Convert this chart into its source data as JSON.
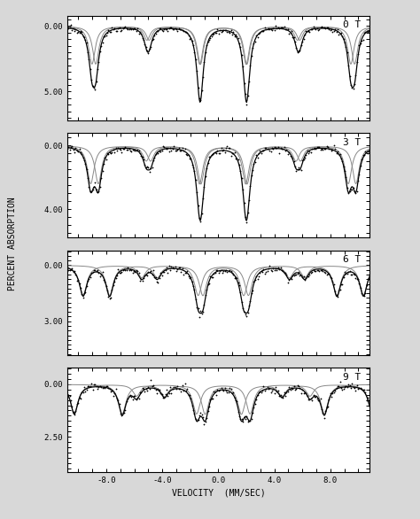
{
  "panels": [
    {
      "label": "0 T",
      "yticks": [
        0.0,
        5.0
      ],
      "ytick_labels": [
        "0.00",
        "5.00"
      ],
      "ylim": [
        7.2,
        -0.8
      ],
      "sextets": [
        {
          "iso": 0.35,
          "bhf": 50.5,
          "gamma": 0.55,
          "depths": [
            5.8,
            2.1,
            5.8,
            5.8,
            2.1,
            5.8
          ]
        },
        {
          "iso": 0.35,
          "bhf": 52.0,
          "gamma": 0.55,
          "depths": [
            5.8,
            2.1,
            5.8,
            5.8,
            2.1,
            5.8
          ]
        }
      ]
    },
    {
      "label": "3 T",
      "yticks": [
        0.0,
        4.0
      ],
      "ytick_labels": [
        "0.00",
        "4.00"
      ],
      "ylim": [
        5.8,
        -0.8
      ],
      "sextets": [
        {
          "iso": 0.35,
          "bhf": 49.5,
          "gamma": 0.58,
          "depths": [
            4.8,
            1.9,
            4.8,
            4.8,
            1.9,
            4.8
          ]
        },
        {
          "iso": 0.35,
          "bhf": 52.5,
          "gamma": 0.58,
          "depths": [
            4.8,
            1.9,
            4.8,
            4.8,
            1.9,
            4.8
          ]
        }
      ]
    },
    {
      "label": "6 T",
      "yticks": [
        0.0,
        3.0
      ],
      "ytick_labels": [
        "0.00",
        "3.00"
      ],
      "ylim": [
        4.8,
        -0.8
      ],
      "sextets": [
        {
          "iso": 0.35,
          "bhf": 45.0,
          "gamma": 0.65,
          "depths": [
            3.2,
            1.3,
            3.2,
            3.2,
            1.3,
            3.2
          ]
        },
        {
          "iso": 0.35,
          "bhf": 55.5,
          "gamma": 0.65,
          "depths": [
            3.2,
            1.3,
            3.2,
            3.2,
            1.3,
            3.2
          ]
        }
      ]
    },
    {
      "label": "9 T",
      "yticks": [
        0.0,
        2.5
      ],
      "ytick_labels": [
        "0.00",
        "2.50"
      ],
      "ylim": [
        4.2,
        -0.8
      ],
      "sextets": [
        {
          "iso": 0.35,
          "bhf": 40.0,
          "gamma": 0.65,
          "depths": [
            2.8,
            1.1,
            2.8,
            2.8,
            1.1,
            2.8
          ]
        },
        {
          "iso": 0.35,
          "bhf": 59.0,
          "gamma": 0.65,
          "depths": [
            2.8,
            1.1,
            2.8,
            2.8,
            1.1,
            2.8
          ]
        }
      ]
    }
  ],
  "velocity_range": [
    -10.8,
    10.8
  ],
  "xlabel": "VELOCITY  (MM/SEC)",
  "ylabel": "PERCENT ABSORPTION",
  "xticks": [
    -8.0,
    -4.0,
    0.0,
    4.0,
    8.0
  ],
  "xtick_labels": [
    "-8.0",
    "-4.0",
    "0.0",
    "4.0",
    "8.0"
  ]
}
